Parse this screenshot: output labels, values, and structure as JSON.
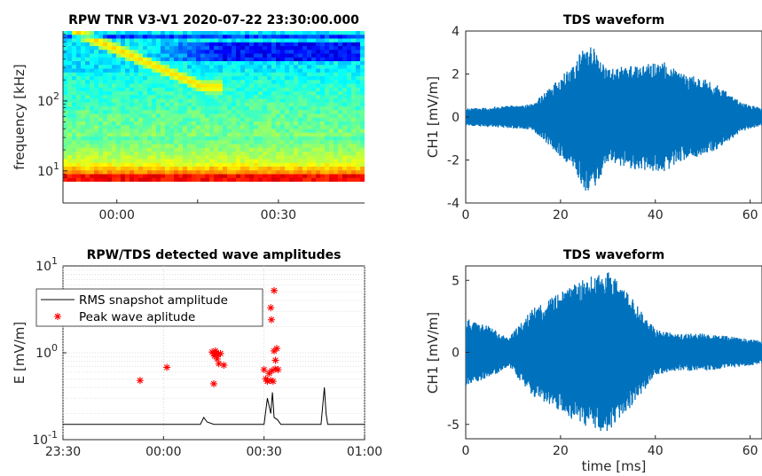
{
  "chart_data": [
    {
      "type": "heatmap",
      "title": "RPW TNR V3-V1 2020-07-22 23:30:00.000",
      "ylabel": "frequency [kHz]",
      "xlabel": "",
      "x_tick_labels": [
        "00:00",
        "00:30"
      ],
      "y_tick_labels": [
        {
          "base": "10",
          "exp": "2"
        },
        {
          "base": "10",
          "exp": "1"
        }
      ],
      "y_scale": "log",
      "ylim_khz": [
        7,
        1000
      ],
      "colormap": "jet",
      "features": {
        "type_iii_burst_drift": "descending from ~1000 kHz at 23:35 to ~150 kHz near 00:00",
        "low_frequency_band": "high intensity (orange/red) below ~12 kHz"
      }
    },
    {
      "type": "line",
      "title": "TDS waveform",
      "ylabel": "CH1 [mV/m]",
      "xlabel": "",
      "x_tick_labels": [
        "0",
        "20",
        "40",
        "60"
      ],
      "y_tick_labels": [
        "4",
        "2",
        "0",
        "-2",
        "-4"
      ],
      "xlim_ms": [
        0,
        62.5
      ],
      "ylim": [
        -4,
        4
      ],
      "color": "#0072BD",
      "envelope_peaks": [
        {
          "t": 0,
          "amp": 0.4
        },
        {
          "t": 14,
          "amp": 0.6
        },
        {
          "t": 18,
          "amp": 1.4
        },
        {
          "t": 22,
          "amp": 2.3
        },
        {
          "t": 26,
          "amp": 3.7
        },
        {
          "t": 30,
          "amp": 2.2
        },
        {
          "t": 34,
          "amp": 2.4
        },
        {
          "t": 38,
          "amp": 2.5
        },
        {
          "t": 42,
          "amp": 2.6
        },
        {
          "t": 46,
          "amp": 2.0
        },
        {
          "t": 50,
          "amp": 1.8
        },
        {
          "t": 54,
          "amp": 1.4
        },
        {
          "t": 58,
          "amp": 0.7
        },
        {
          "t": 62.5,
          "amp": 0.4
        }
      ]
    },
    {
      "type": "scatter",
      "title": "RPW/TDS detected wave amplitudes",
      "ylabel": "E [mV/m]",
      "xlabel": "",
      "x_tick_labels": [
        "23:30",
        "00:00",
        "00:30",
        "01:00"
      ],
      "y_tick_labels": [
        {
          "base": "10",
          "exp": "1"
        },
        {
          "base": "10",
          "exp": "0"
        },
        {
          "base": "10",
          "exp": "-1"
        }
      ],
      "y_scale": "log",
      "xlim_min": [
        0,
        90
      ],
      "ylim": [
        0.1,
        10
      ],
      "legend_position": "top-left",
      "series": [
        {
          "name": "RMS snapshot amplitude",
          "style": "line",
          "color": "#000000",
          "x_min": [
            0,
            10,
            20,
            28,
            35,
            41,
            42,
            43,
            45,
            50,
            55,
            60,
            61,
            62,
            62.5,
            63,
            64,
            65,
            70,
            75,
            77,
            78,
            78.5,
            79,
            80,
            85,
            90
          ],
          "y": [
            0.15,
            0.15,
            0.15,
            0.15,
            0.15,
            0.15,
            0.18,
            0.16,
            0.15,
            0.15,
            0.15,
            0.15,
            0.3,
            0.2,
            0.35,
            0.18,
            0.17,
            0.15,
            0.15,
            0.15,
            0.15,
            0.4,
            0.2,
            0.15,
            0.15,
            0.15,
            0.15
          ]
        },
        {
          "name": "Peak wave aplitude",
          "style": "markers",
          "marker": "*",
          "color": "#FF0000",
          "x_min": [
            23,
            31,
            44.5,
            45,
            45.2,
            45.5,
            45.8,
            46,
            46.3,
            46.5,
            47,
            48,
            45,
            60,
            60.5,
            61,
            61.5,
            62,
            62.3,
            62.7,
            63,
            63.4,
            62,
            62.2,
            63,
            63.3,
            63.8,
            64.2
          ],
          "y": [
            0.48,
            0.68,
            1.02,
            0.98,
            0.92,
            1.05,
            1.0,
            0.85,
            0.95,
            0.75,
            0.98,
            0.72,
            0.44,
            0.64,
            0.5,
            0.47,
            0.58,
            0.48,
            0.62,
            0.47,
            1.05,
            0.82,
            3.3,
            2.4,
            5.2,
            0.65,
            1.12,
            0.64
          ]
        }
      ]
    },
    {
      "type": "line",
      "title": "TDS waveform",
      "ylabel": "CH1 [mV/m]",
      "xlabel": "time [ms]",
      "x_tick_labels": [
        "0",
        "20",
        "40",
        "60"
      ],
      "y_tick_labels": [
        "5",
        "0",
        "-5"
      ],
      "xlim_ms": [
        0,
        62.5
      ],
      "ylim": [
        -6,
        6
      ],
      "color": "#0072BD",
      "envelope_peaks": [
        {
          "t": 0,
          "amp": 2.4
        },
        {
          "t": 5,
          "amp": 1.8
        },
        {
          "t": 9,
          "amp": 1.0
        },
        {
          "t": 14,
          "amp": 3.0
        },
        {
          "t": 20,
          "amp": 4.2
        },
        {
          "t": 25,
          "amp": 5.1
        },
        {
          "t": 30,
          "amp": 5.7
        },
        {
          "t": 35,
          "amp": 3.8
        },
        {
          "t": 40,
          "amp": 1.6
        },
        {
          "t": 44,
          "amp": 1.3
        },
        {
          "t": 50,
          "amp": 1.3
        },
        {
          "t": 56,
          "amp": 1.1
        },
        {
          "t": 62.5,
          "amp": 0.8
        }
      ]
    }
  ]
}
